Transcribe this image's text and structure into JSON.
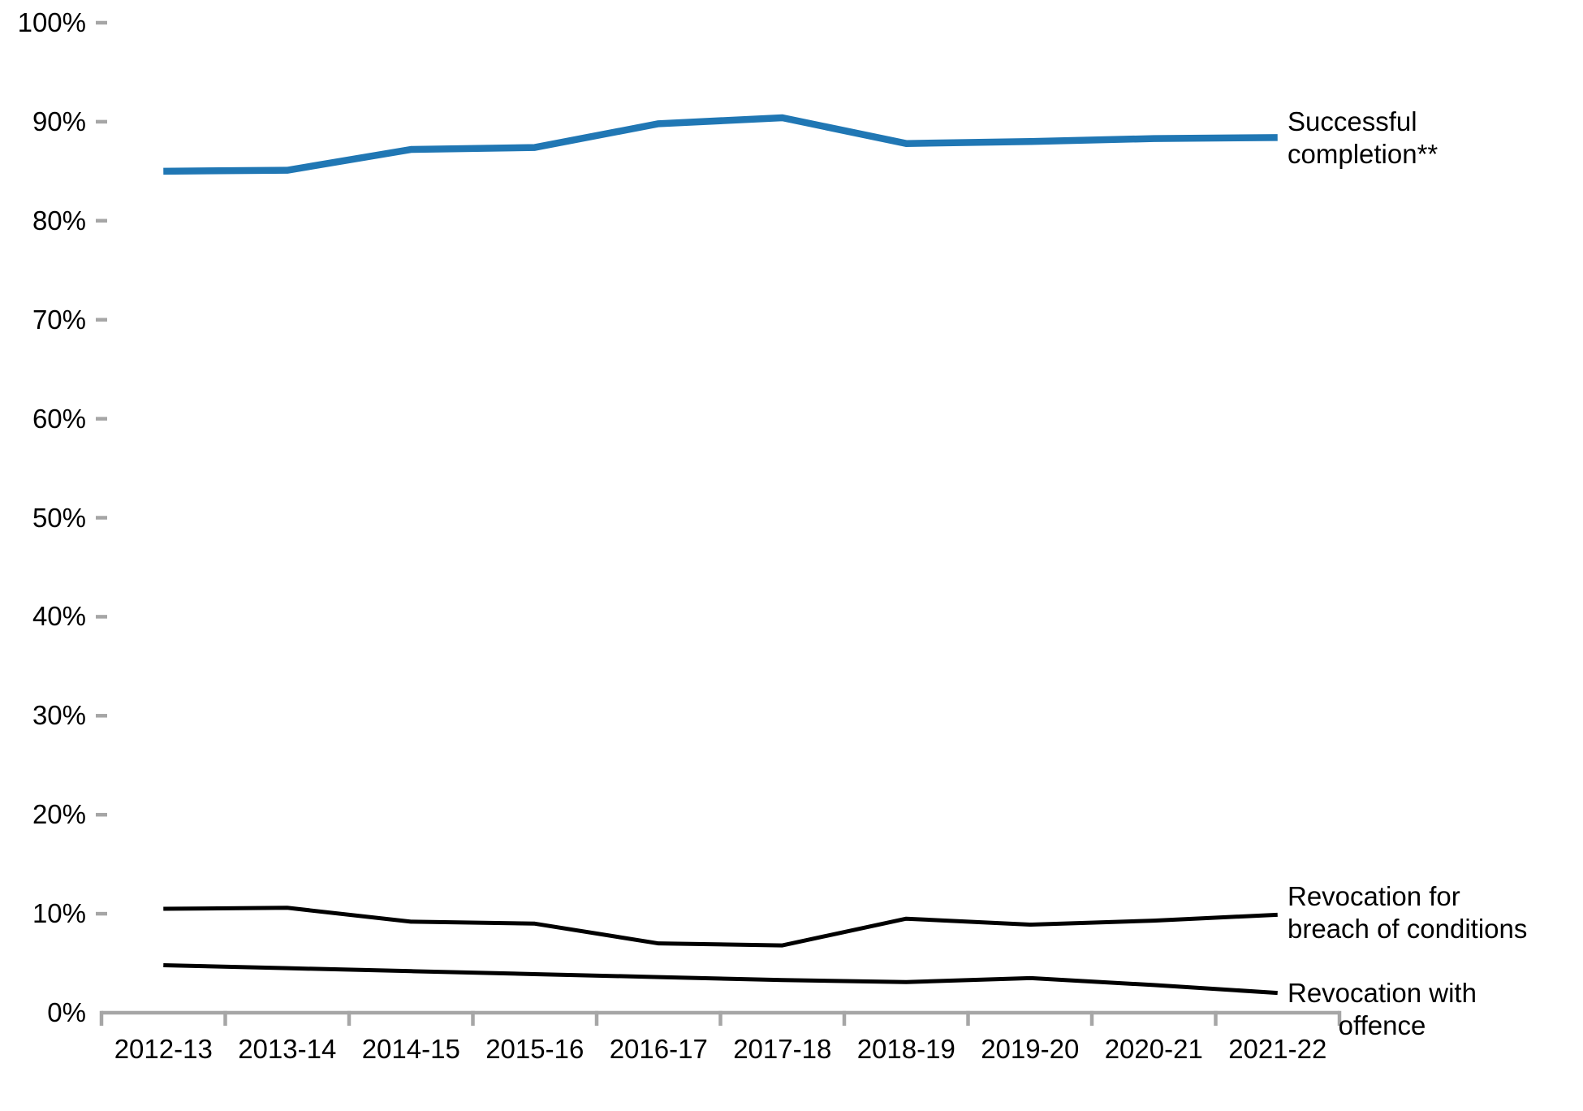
{
  "chart_data": {
    "type": "line",
    "title": "",
    "xlabel": "",
    "ylabel": "",
    "ylim": [
      0,
      100
    ],
    "y_tick_step": 10,
    "y_tick_labels": [
      "0%",
      "10%",
      "20%",
      "30%",
      "40%",
      "50%",
      "60%",
      "70%",
      "80%",
      "90%",
      "100%"
    ],
    "grid": false,
    "legend_position": "line-end-labels-right",
    "categories": [
      "2012-13",
      "2013-14",
      "2014-15",
      "2015-16",
      "2016-17",
      "2017-18",
      "2018-19",
      "2019-20",
      "2020-21",
      "2021-22"
    ],
    "series": [
      {
        "name": "Successful completion**",
        "values": [
          85.0,
          85.1,
          87.2,
          87.4,
          89.8,
          90.4,
          87.8,
          88.0,
          88.3,
          88.4
        ],
        "color": "#2077B4",
        "stroke_width": 8.5
      },
      {
        "name": "Revocation for breach of conditions",
        "values": [
          10.5,
          10.6,
          9.2,
          9.0,
          7.0,
          6.8,
          9.5,
          8.9,
          9.3,
          9.9
        ],
        "color": "#000000",
        "stroke_width": 5
      },
      {
        "name": "Revocation with offence",
        "values": [
          4.8,
          4.5,
          4.2,
          3.9,
          3.6,
          3.3,
          3.1,
          3.5,
          2.8,
          2.0
        ],
        "color": "#000000",
        "stroke_width": 5
      }
    ],
    "annotations": {
      "successful": "Successful\ncompletion**",
      "breach": "Revocation for\nbreach of conditions",
      "offence": "Revocation with\noffence"
    },
    "axis_color": "#A6A6A6",
    "text_color": "#000000"
  }
}
